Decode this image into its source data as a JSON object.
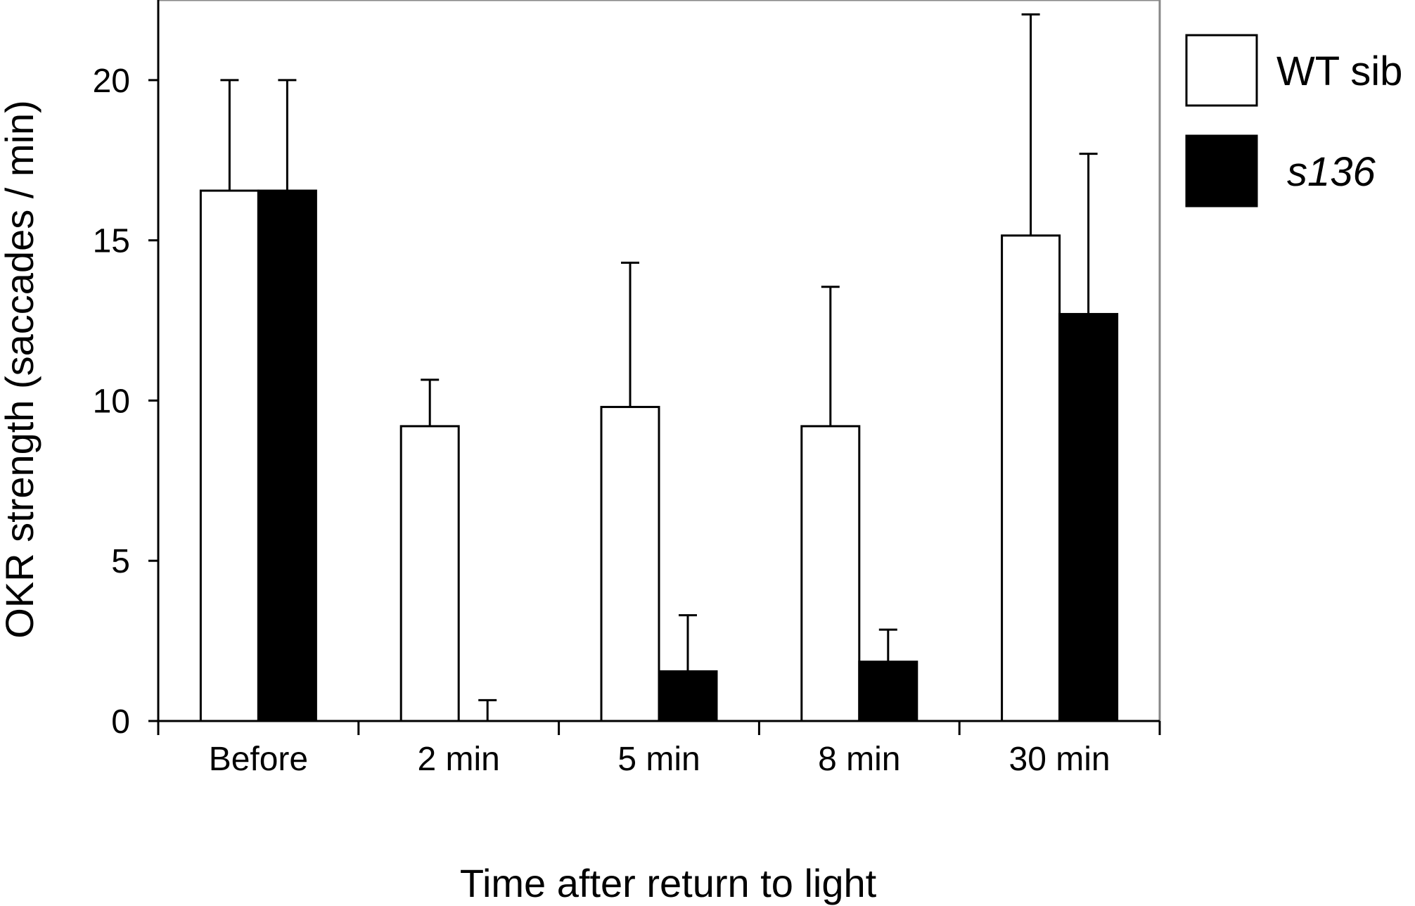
{
  "chart_data": {
    "type": "bar",
    "categories": [
      "Before",
      "2 min",
      "5 min",
      "8 min",
      "30 min"
    ],
    "series": [
      {
        "name": "WT sib",
        "fill": "#ffffff",
        "values": [
          16.55,
          9.2,
          9.8,
          9.2,
          15.15
        ],
        "error": [
          3.45,
          1.45,
          4.5,
          4.35,
          6.9
        ]
      },
      {
        "name": "s136",
        "fill": "#000000",
        "values": [
          16.55,
          0,
          1.55,
          1.85,
          12.7
        ],
        "error": [
          3.45,
          0.65,
          1.75,
          1.0,
          5.0
        ]
      }
    ],
    "xlabel": "Time after return to light",
    "ylabel": "OKR strength (saccades / min)",
    "ylim": [
      0,
      22.5
    ],
    "yticks": [
      0,
      5,
      10,
      15,
      20
    ],
    "grid": false,
    "legend_position": "right, outside plot"
  }
}
